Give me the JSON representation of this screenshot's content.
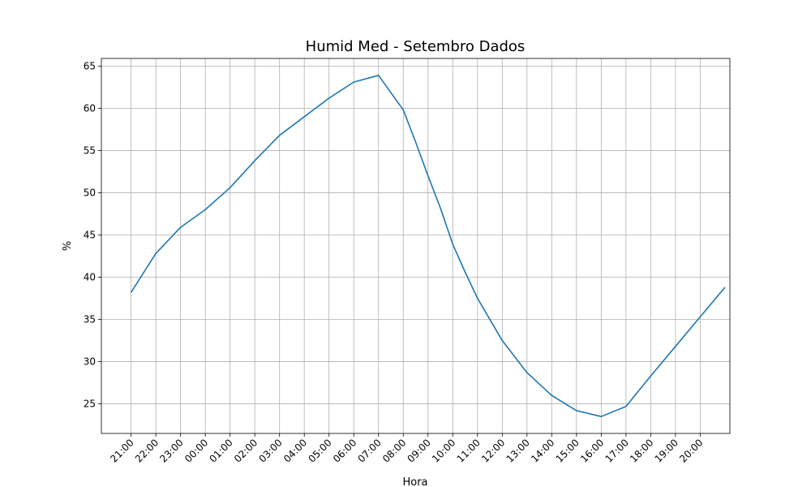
{
  "chart_data": {
    "type": "line",
    "title": "Humid Med - Setembro Dados",
    "xlabel": "Hora",
    "ylabel": "%",
    "categories": [
      "21:00",
      "22:00",
      "23:00",
      "00:00",
      "01:00",
      "02:00",
      "03:00",
      "04:00",
      "05:00",
      "06:00",
      "07:00",
      "08:00",
      "09:00",
      "10:00",
      "11:00",
      "12:00",
      "13:00",
      "14:00",
      "15:00",
      "16:00",
      "17:00",
      "18:00",
      "19:00",
      "20:00"
    ],
    "series": [
      {
        "color": "#1f77b4",
        "x": [
          0,
          1,
          2,
          3,
          4,
          5,
          6,
          7,
          8,
          9,
          10,
          11,
          11.5,
          12,
          12.5,
          13,
          13.5,
          14,
          15,
          16,
          17,
          18,
          19,
          20,
          21,
          22,
          23,
          24
        ],
        "values": [
          38.2,
          42.8,
          45.9,
          48.0,
          50.6,
          53.8,
          56.8,
          59.0,
          61.2,
          63.1,
          63.9,
          59.8,
          56.0,
          52.0,
          48.2,
          43.9,
          40.6,
          37.5,
          32.5,
          28.7,
          26.0,
          24.2,
          23.5,
          24.7,
          28.3,
          31.8,
          35.3,
          38.8
        ]
      }
    ],
    "xlim": [
      -1.2,
      24.2
    ],
    "ylim": [
      21.5,
      65.9
    ],
    "yticks": [
      25,
      30,
      35,
      40,
      45,
      50,
      55,
      60,
      65
    ],
    "grid": true
  }
}
